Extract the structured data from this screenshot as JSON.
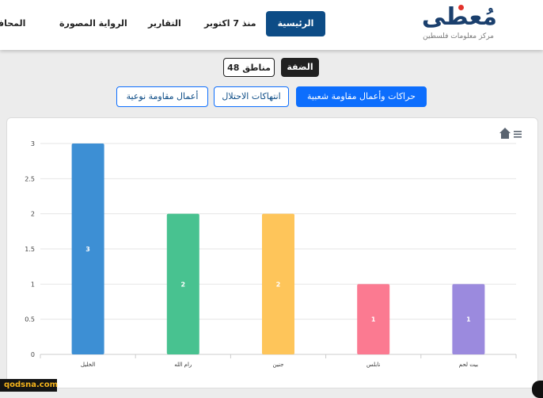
{
  "header": {
    "logo_text": "مُعطى",
    "logo_subtitle": "مركز معلومات فلسطين",
    "nav": {
      "home": "الرئيسية",
      "since_oct7": "منذ 7 اكتوبر",
      "reports": "التقارير",
      "photo_story": "الرواية المصورة",
      "governorates": "المحافظات"
    }
  },
  "filters": {
    "west_bank": "الضفة",
    "areas_48": "مناطق 48"
  },
  "tabs": {
    "popular_resistance": "حراكات وأعمال مقاومة شعبية",
    "occupation_violations": "انتهاكات الاحتلال",
    "qualitative_resistance": "أعمال مقاومة نوعية"
  },
  "chart_data": {
    "type": "bar",
    "categories": [
      "الخليل",
      "رام الله",
      "جنين",
      "نابلس",
      "بيت لحم"
    ],
    "values": [
      3,
      2,
      2,
      1,
      1
    ],
    "colors": [
      "#3d8fd4",
      "#48c290",
      "#fec55a",
      "#fb7a91",
      "#9b8ade"
    ],
    "ylim": [
      0,
      3
    ],
    "yticks": [
      "0",
      "0.5",
      "1",
      "1.5",
      "2",
      "2.5",
      "3"
    ],
    "grid": true
  },
  "icons": {
    "home": "home-icon",
    "menu": "hamburger-menu-icon",
    "watermark": "qodsna.com"
  }
}
